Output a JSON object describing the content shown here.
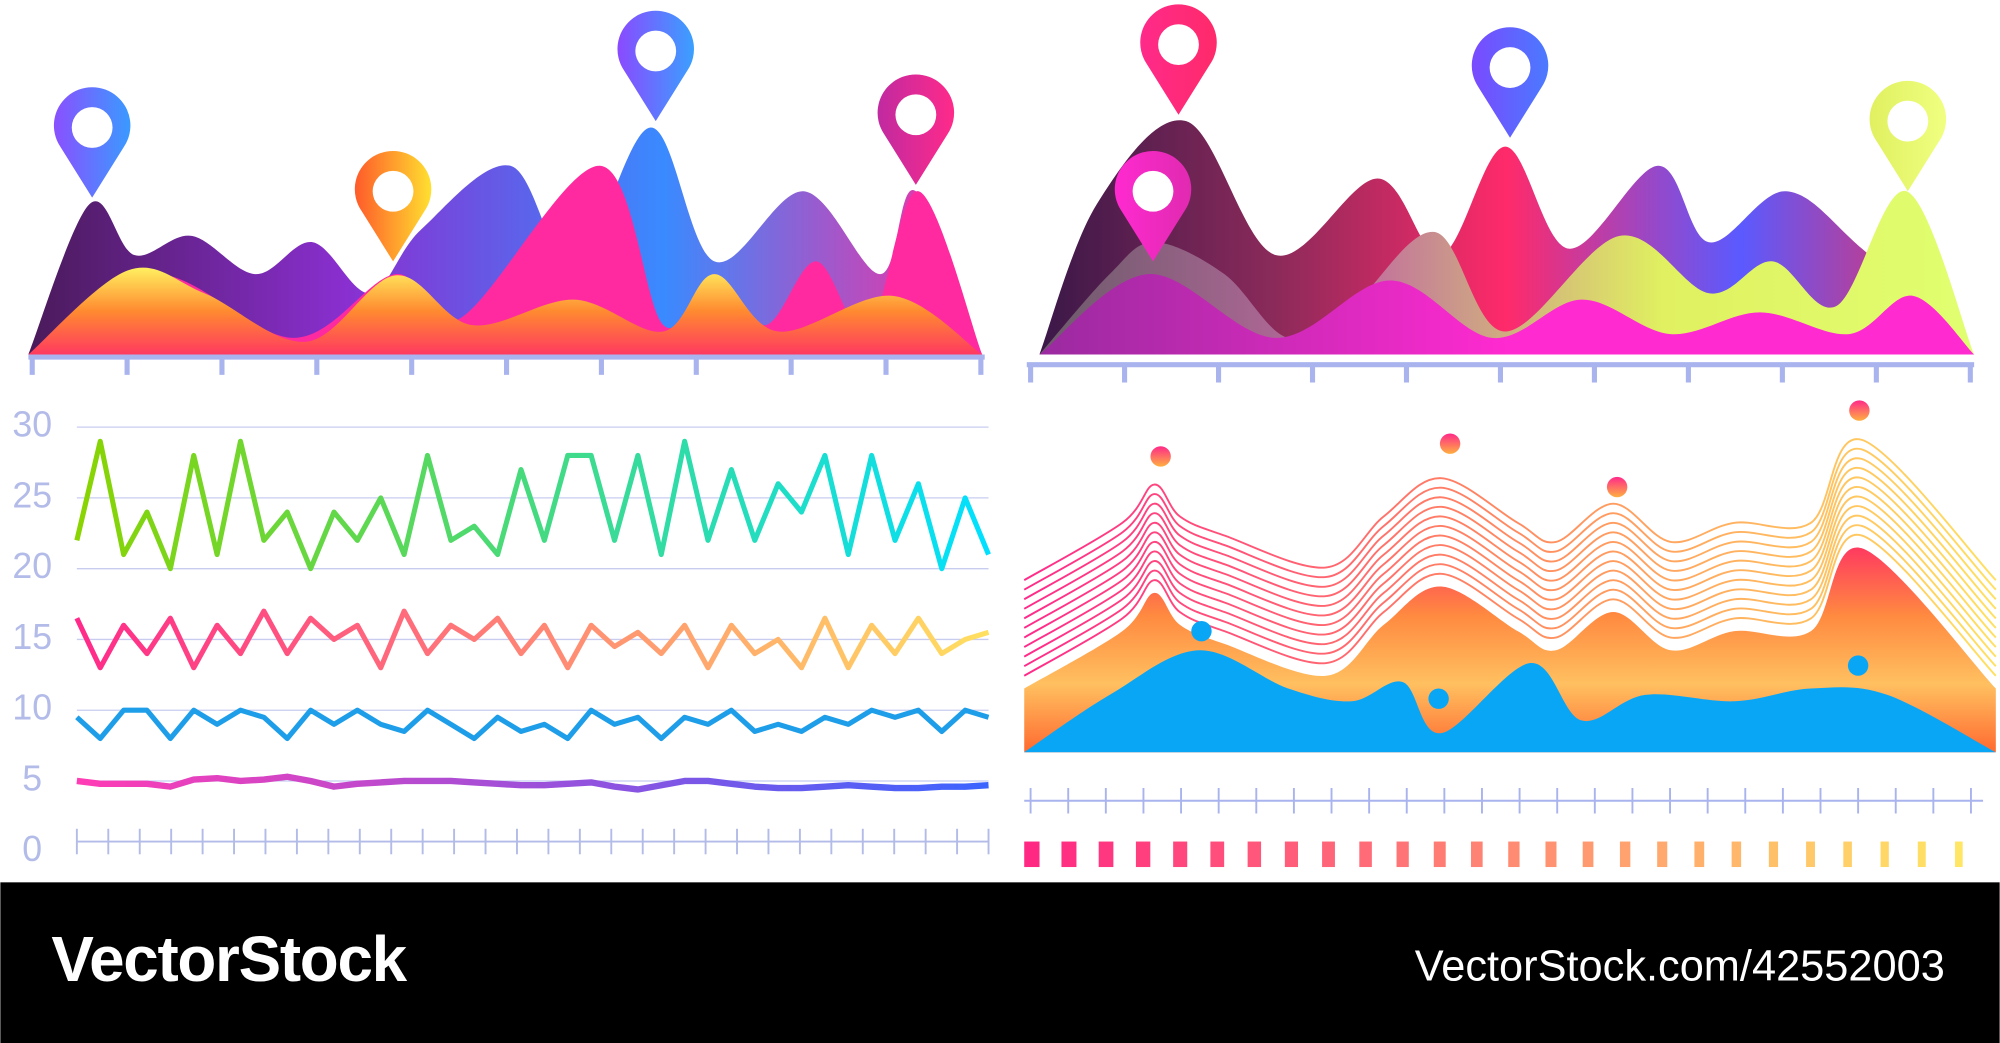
{
  "chart_data": {
    "type": "line",
    "ylim": [
      0,
      30
    ],
    "yticks": [
      0,
      5,
      10,
      15,
      20,
      25,
      30
    ],
    "grid": true,
    "series": [
      {
        "colors": [
          "#8ad400",
          "#00e0ff"
        ],
        "values": [
          22,
          29,
          21,
          24,
          20,
          28,
          21,
          29,
          22,
          24,
          20,
          24,
          22,
          25,
          21,
          28,
          22,
          23,
          21,
          27,
          22,
          28,
          28,
          22,
          28,
          21,
          29,
          22,
          27,
          22,
          26,
          24,
          28,
          21,
          28,
          22,
          26,
          20,
          25,
          21
        ]
      },
      {
        "colors": [
          "#ff2a8a",
          "#ffe060"
        ],
        "values": [
          16.5,
          13,
          16,
          14,
          16.5,
          13,
          16,
          14,
          17,
          14,
          16.5,
          15,
          16,
          13,
          17,
          14,
          16,
          15,
          16.5,
          14,
          16,
          13,
          16,
          14.5,
          15.5,
          14,
          16,
          13,
          16,
          14,
          15,
          13,
          16.5,
          13,
          16,
          14,
          16.5,
          14,
          15,
          15.5
        ]
      },
      {
        "colors": [
          "#1e9ee8",
          "#1e9ee8"
        ],
        "values": [
          9.5,
          8,
          10,
          10,
          8,
          10,
          9,
          10,
          9.5,
          8,
          10,
          9,
          10,
          9,
          8.5,
          10,
          9,
          8,
          9.5,
          8.5,
          9,
          8,
          10,
          9,
          9.5,
          8,
          9.5,
          9,
          10,
          8.5,
          9,
          8.5,
          9.5,
          9,
          10,
          9.5,
          10,
          8.5,
          10,
          9.5
        ]
      },
      {
        "colors": [
          "#ff3cb4",
          "#3c64ff"
        ],
        "values": [
          5,
          4.8,
          4.8,
          4.8,
          4.6,
          5.1,
          5.2,
          5,
          5.1,
          5.3,
          5,
          4.6,
          4.8,
          4.9,
          5,
          5,
          5,
          4.9,
          4.8,
          4.7,
          4.7,
          4.8,
          4.9,
          4.6,
          4.4,
          4.7,
          5,
          5,
          4.8,
          4.6,
          4.5,
          4.5,
          4.6,
          4.7,
          4.6,
          4.5,
          4.5,
          4.6,
          4.6,
          4.7
        ]
      }
    ]
  },
  "footer": {
    "brand": "VectorStock",
    "url": "VectorStock.com/42552003"
  }
}
